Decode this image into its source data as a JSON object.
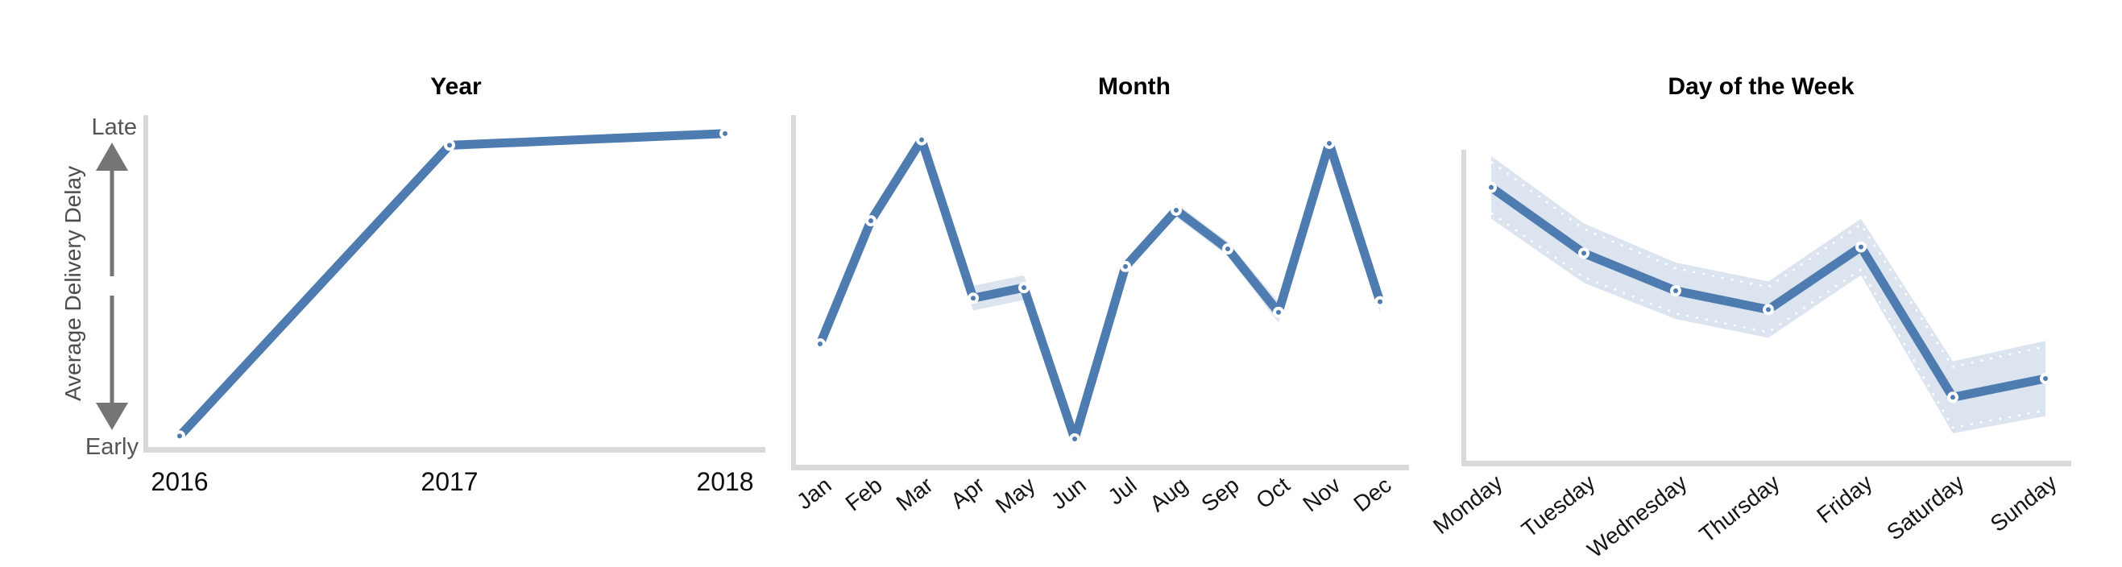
{
  "figure": {
    "ylabel": "Average Delivery Delay",
    "y_top_label": "Late",
    "y_bottom_label": "Early",
    "yaxis_type": "qualitative (Early at bottom to Late at top), no numeric ticks, arrow annotation pointing both up and down"
  },
  "colors": {
    "line": "#4e7cb0",
    "band": "#dce4f0",
    "band_edge_dash": "#ffffff",
    "axis": "#d9d9d9",
    "arrow": "#757575",
    "marker_ring": "#ffffff",
    "marker_dot": "#4e7cb0",
    "title_text": "#000000",
    "tick_text": "#141414",
    "qual_text": "#555555"
  },
  "chart_data": [
    {
      "type": "line",
      "title": "Year",
      "categories": [
        "2016",
        "2017",
        "2018"
      ],
      "values": [
        0.04,
        0.91,
        0.945
      ],
      "ci_halfwidth": [
        0.008,
        0.01,
        0.01
      ],
      "xlabel": "",
      "ylabel": "Average Delivery Delay",
      "ylim": [
        0,
        1
      ],
      "grid": false,
      "legend": "none",
      "notes": "values are relative delivery delay, 0 = Early, 1 = Late; steep rise 2016 to 2017, nearly flat slight rise 2017 to 2018"
    },
    {
      "type": "line",
      "title": "Month",
      "categories": [
        "Jan",
        "Feb",
        "Mar",
        "Apr",
        "May",
        "Jun",
        "Jul",
        "Aug",
        "Sep",
        "Oct",
        "Nov",
        "Dec"
      ],
      "values": [
        0.35,
        0.7,
        0.93,
        0.48,
        0.51,
        0.08,
        0.57,
        0.73,
        0.62,
        0.44,
        0.92,
        0.47
      ],
      "ci_halfwidth": [
        0.02,
        0.02,
        0.02,
        0.035,
        0.035,
        0.02,
        0.015,
        0.02,
        0.02,
        0.03,
        0.02,
        0.03
      ],
      "xlabel": "",
      "ylim": [
        0,
        1
      ],
      "grid": false,
      "legend": "none",
      "notes": "peaks in Mar and Nov, deep minimum in Jun, local minimum Oct; thin confidence band"
    },
    {
      "type": "line",
      "title": "Day of the Week",
      "categories": [
        "Monday",
        "Tuesday",
        "Wednesday",
        "Thursday",
        "Friday",
        "Saturday",
        "Sunday"
      ],
      "values": [
        0.88,
        0.67,
        0.55,
        0.49,
        0.69,
        0.21,
        0.27
      ],
      "ci_halfwidth": [
        0.1,
        0.095,
        0.09,
        0.09,
        0.09,
        0.115,
        0.12
      ],
      "xlabel": "",
      "ylim": [
        0,
        1
      ],
      "grid": false,
      "legend": "none",
      "notes": "declines Monday through Thursday, bump on Friday, drops to minimum Saturday, slight rise Sunday; wide confidence band with dashed white inner edge"
    }
  ]
}
